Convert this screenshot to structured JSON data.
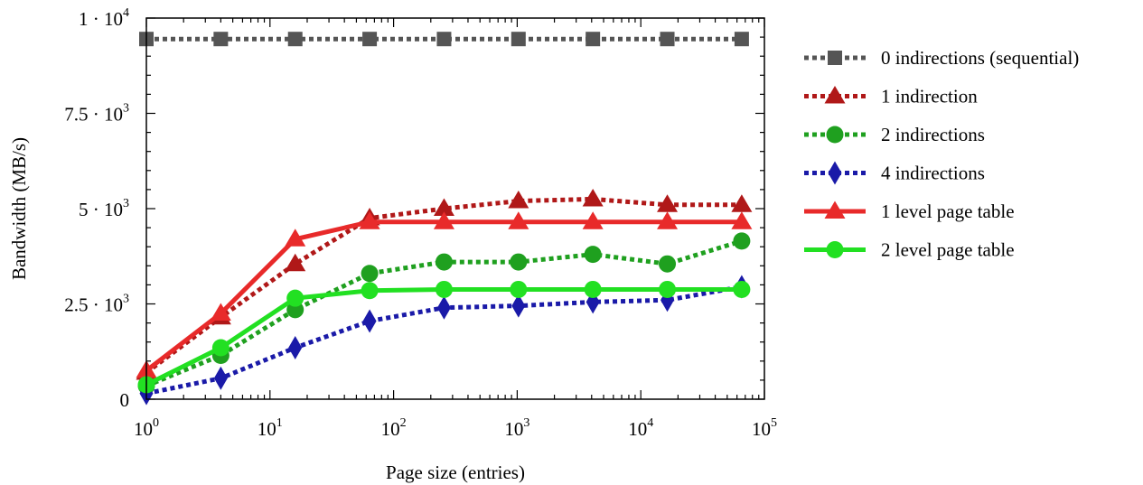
{
  "chart_data": {
    "type": "line",
    "xlabel": "Page size (entries)",
    "ylabel": "Bandwidth (MB/s)",
    "x_scale": "log",
    "xlim": [
      1,
      100000
    ],
    "ylim": [
      0,
      10000
    ],
    "x_ticks": [
      {
        "value": 1,
        "base": "10",
        "exp": "0"
      },
      {
        "value": 10,
        "base": "10",
        "exp": "1"
      },
      {
        "value": 100,
        "base": "10",
        "exp": "2"
      },
      {
        "value": 1000,
        "base": "10",
        "exp": "3"
      },
      {
        "value": 10000,
        "base": "10",
        "exp": "4"
      },
      {
        "value": 100000,
        "base": "10",
        "exp": "5"
      }
    ],
    "y_ticks": [
      {
        "value": 0,
        "mant": "0",
        "exp": ""
      },
      {
        "value": 2500,
        "mant": "2.5 · 10",
        "exp": "3"
      },
      {
        "value": 5000,
        "mant": "5 · 10",
        "exp": "3"
      },
      {
        "value": 7500,
        "mant": "7.5 · 10",
        "exp": "3"
      },
      {
        "value": 10000,
        "mant": "1 · 10",
        "exp": "4"
      }
    ],
    "grid": false,
    "legend_position": "right",
    "series": [
      {
        "name": "0 indirections (sequential)",
        "color": "#555555",
        "dash": "dotted",
        "marker": "square",
        "x": [
          1,
          4,
          16,
          64,
          256,
          1024,
          4096,
          16384,
          65536
        ],
        "y": [
          9450,
          9450,
          9450,
          9450,
          9450,
          9450,
          9450,
          9450,
          9450
        ]
      },
      {
        "name": "1 indirection",
        "color": "#b01818",
        "dash": "dotted",
        "marker": "triangle",
        "x": [
          1,
          4,
          16,
          64,
          256,
          1024,
          4096,
          16384,
          65536
        ],
        "y": [
          700,
          2150,
          3550,
          4750,
          5000,
          5200,
          5250,
          5100,
          5100
        ]
      },
      {
        "name": "2 indirections",
        "color": "#1fa01f",
        "dash": "dotted",
        "marker": "circle",
        "x": [
          1,
          4,
          16,
          64,
          256,
          1024,
          4096,
          16384,
          65536
        ],
        "y": [
          350,
          1150,
          2350,
          3300,
          3600,
          3600,
          3800,
          3550,
          4150
        ]
      },
      {
        "name": "4 indirections",
        "color": "#1a1aa8",
        "dash": "dotted",
        "marker": "diamond",
        "x": [
          1,
          4,
          16,
          64,
          256,
          1024,
          4096,
          16384,
          65536
        ],
        "y": [
          150,
          550,
          1350,
          2050,
          2400,
          2450,
          2550,
          2600,
          2950
        ]
      },
      {
        "name": "1 level page table",
        "color": "#e82a2a",
        "dash": "solid",
        "marker": "triangle",
        "x": [
          1,
          4,
          16,
          64,
          256,
          1024,
          4096,
          16384,
          65536
        ],
        "y": [
          750,
          2250,
          4200,
          4650,
          4650,
          4650,
          4650,
          4650,
          4650
        ]
      },
      {
        "name": "2 level page table",
        "color": "#22e022",
        "dash": "solid",
        "marker": "circle",
        "x": [
          1,
          4,
          16,
          64,
          256,
          1024,
          4096,
          16384,
          65536
        ],
        "y": [
          380,
          1350,
          2650,
          2850,
          2880,
          2880,
          2880,
          2880,
          2880
        ]
      }
    ]
  }
}
